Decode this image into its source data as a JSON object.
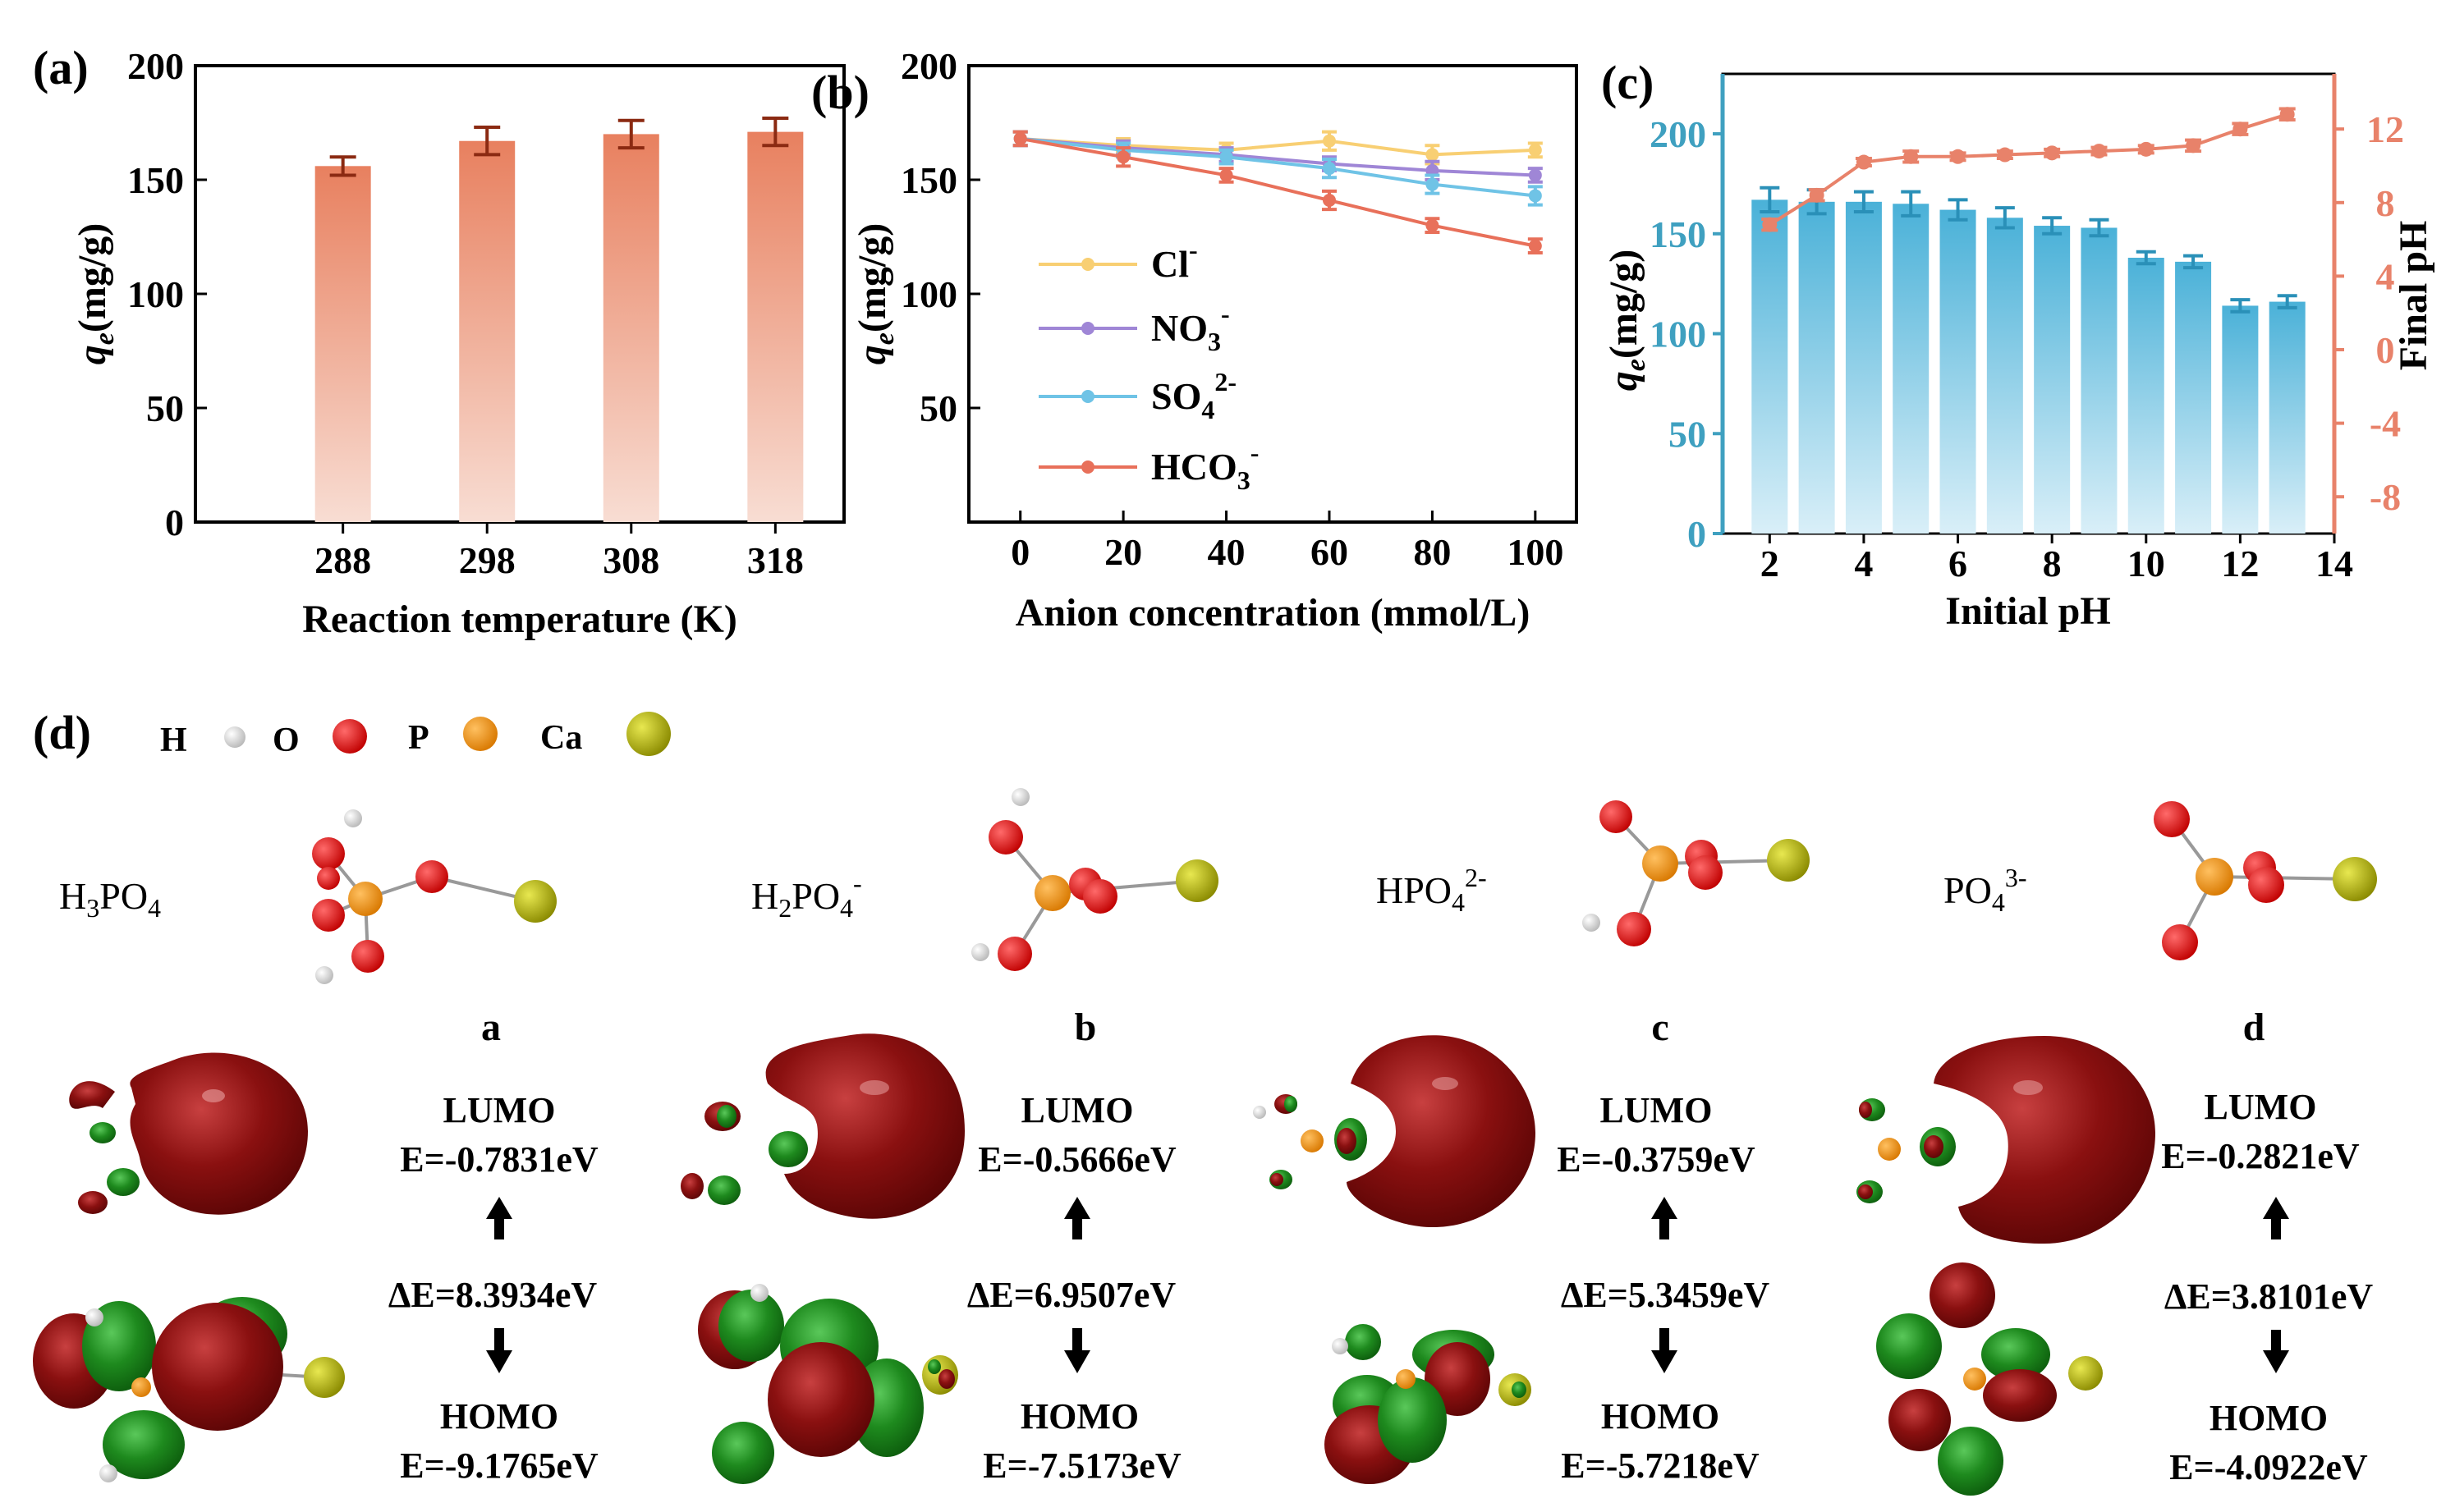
{
  "colors": {
    "bar_a_top": "#e8805f",
    "bar_a_bottom": "#f8ddd3",
    "err_a": "#8b2a12",
    "bar_c_top": "#4ab1d8",
    "bar_c_bottom": "#d9eff8",
    "axis_c_left": "#3fa0c0",
    "axis_c_right": "#e8826a",
    "cl": "#f8cf73",
    "no3": "#9f86d6",
    "so4": "#6fc3e6",
    "hco3": "#e8705a",
    "lobe_red": "#7d0b0b",
    "lobe_green": "#1a8a1a",
    "atom_h": "#e4e4e4",
    "atom_o": "#e01010",
    "atom_p": "#f29410",
    "atom_ca": "#b8b810"
  },
  "panel_labels": {
    "a": "(a)",
    "b": "(b)",
    "c": "(c)",
    "d": "(d)"
  },
  "chart_data": [
    {
      "id": "a",
      "type": "bar",
      "title": "",
      "xlabel": "Reaction temperature (K)",
      "ylabel": "(mg/g)",
      "ylabel_symbol": "q",
      "ylabel_sub": "e",
      "categories": [
        "288",
        "298",
        "308",
        "318"
      ],
      "values": [
        156,
        167,
        170,
        171
      ],
      "errors": [
        4,
        6,
        6,
        6
      ],
      "ylim": [
        0,
        200
      ],
      "yticks": [
        "0",
        "50",
        "100",
        "150",
        "200"
      ]
    },
    {
      "id": "b",
      "type": "line",
      "xlabel": "Anion concentration (mmol/L)",
      "ylabel": "(mg/g)",
      "ylabel_symbol": "q",
      "ylabel_sub": "e",
      "x": [
        0,
        20,
        40,
        60,
        80,
        100
      ],
      "xlim": [
        -10,
        108
      ],
      "ylim": [
        0,
        200
      ],
      "xticks": [
        "0",
        "20",
        "40",
        "60",
        "80",
        "100"
      ],
      "yticks": [
        "50",
        "100",
        "150",
        "200"
      ],
      "series": [
        {
          "name": "Cl",
          "sup": "-",
          "sub": "",
          "values": [
            168,
            165,
            163,
            167,
            161,
            163
          ],
          "errors": [
            3,
            3,
            3,
            4,
            4,
            3
          ]
        },
        {
          "name": "NO",
          "sub": "3",
          "sup": "-",
          "values": [
            168,
            164,
            161,
            157,
            154,
            152
          ],
          "errors": [
            3,
            3,
            3,
            3,
            4,
            3
          ]
        },
        {
          "name": "SO",
          "sub": "4",
          "sup": "2-",
          "values": [
            168,
            163,
            160,
            155,
            148,
            143
          ],
          "errors": [
            3,
            3,
            3,
            4,
            4,
            4
          ]
        },
        {
          "name": "HCO",
          "sub": "3",
          "sup": "-",
          "values": [
            168,
            160,
            152,
            141,
            130,
            121
          ],
          "errors": [
            3,
            4,
            3,
            4,
            3,
            3
          ]
        }
      ]
    },
    {
      "id": "c",
      "type": "bar",
      "xlabel": "Initial pH",
      "ylabel": "(mg/g)",
      "ylabel_symbol": "q",
      "ylabel_sub": "e",
      "y2label": "Final pH",
      "categories": [
        "2",
        "3",
        "4",
        "5",
        "6",
        "7",
        "8",
        "9",
        "10",
        "11",
        "12",
        "13"
      ],
      "x": [
        2,
        3,
        4,
        5,
        6,
        7,
        8,
        9,
        10,
        11,
        12,
        13
      ],
      "values": [
        167,
        166,
        166,
        165,
        162,
        158,
        154,
        153,
        138,
        136,
        114,
        116
      ],
      "errors": [
        6,
        6,
        5,
        6,
        5,
        5,
        4,
        4,
        3,
        3,
        3,
        3
      ],
      "line_series": {
        "name": "Final pH",
        "values": [
          6.8,
          8.4,
          10.2,
          10.5,
          10.5,
          10.6,
          10.7,
          10.8,
          10.9,
          11.1,
          12.0,
          12.8
        ],
        "errors": [
          0.3,
          0.3,
          0.2,
          0.3,
          0.2,
          0.2,
          0.2,
          0.2,
          0.2,
          0.3,
          0.3,
          0.3
        ]
      },
      "xlim": [
        1,
        14
      ],
      "ylim": [
        0,
        230
      ],
      "y2lim": [
        -10,
        15
      ],
      "xticks": [
        "2",
        "4",
        "6",
        "8",
        "10",
        "12",
        "14"
      ],
      "yticks": [
        "0",
        "50",
        "100",
        "150",
        "200"
      ],
      "y2ticks": [
        "-8",
        "-4",
        "0",
        "4",
        "8",
        "12"
      ]
    }
  ],
  "panel_d": {
    "legend": [
      {
        "symbol": "H",
        "atom": "h"
      },
      {
        "symbol": "O",
        "atom": "o"
      },
      {
        "symbol": "P",
        "atom": "p"
      },
      {
        "symbol": "Ca",
        "atom": "ca"
      }
    ],
    "species": [
      {
        "main": "H",
        "n1": "3",
        "mid": "PO",
        "n2": "4",
        "charge": ""
      },
      {
        "main": "H",
        "n1": "2",
        "mid": "PO",
        "n2": "4",
        "charge": "-"
      },
      {
        "main": "HPO",
        "n1": "4",
        "mid": "",
        "n2": "",
        "charge": "2-"
      },
      {
        "main": "PO",
        "n1": "4",
        "mid": "",
        "n2": "",
        "charge": "3-"
      }
    ],
    "panels": [
      {
        "letter": "a",
        "lumo_label": "LUMO",
        "lumo_value": "E=-0.7831eV",
        "gap": "ΔE=8.3934eV",
        "homo_label": "HOMO",
        "homo_value": "E=-9.1765eV"
      },
      {
        "letter": "b",
        "lumo_label": "LUMO",
        "lumo_value": "E=-0.5666eV",
        "gap": "ΔE=6.9507eV",
        "homo_label": "HOMO",
        "homo_value": "E=-7.5173eV"
      },
      {
        "letter": "c",
        "lumo_label": "LUMO",
        "lumo_value": "E=-0.3759eV",
        "gap": "ΔE=5.3459eV",
        "homo_label": "HOMO",
        "homo_value": "E=-5.7218eV"
      },
      {
        "letter": "d",
        "lumo_label": "LUMO",
        "lumo_value": "E=-0.2821eV",
        "gap": "ΔE=3.8101eV",
        "homo_label": "HOMO",
        "homo_value": "E=-4.0922eV"
      }
    ]
  }
}
